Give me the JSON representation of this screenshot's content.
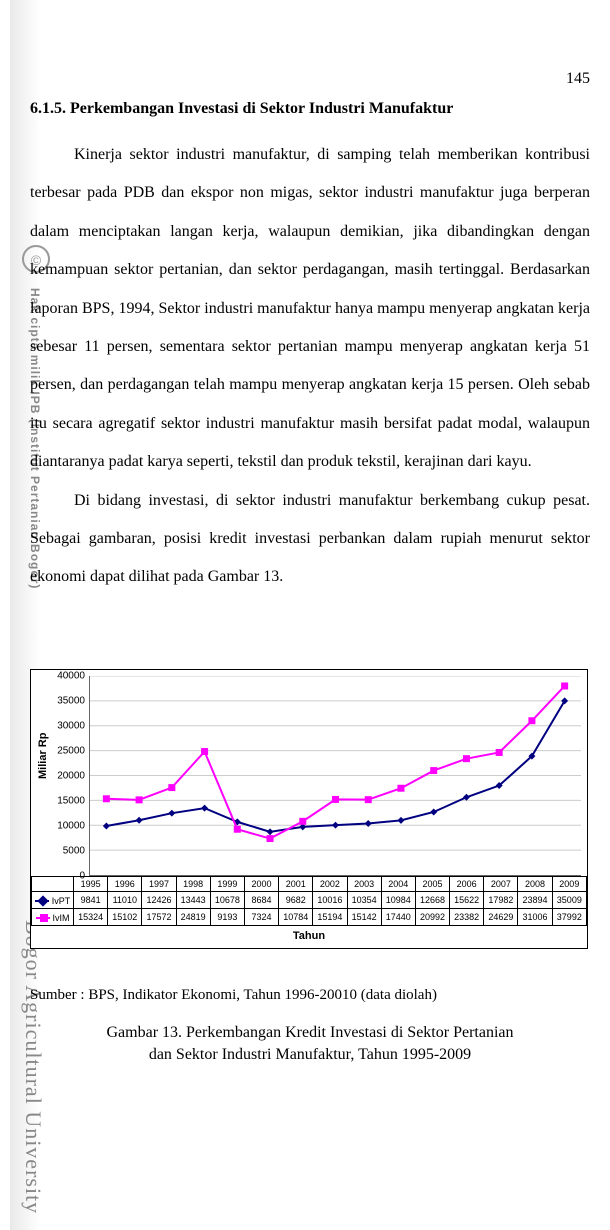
{
  "page_number": "145",
  "heading": "6.1.5. Perkembangan  Investasi di Sektor Industri Manufaktur",
  "para1": "Kinerja sektor industri manufaktur, di samping telah memberikan kontribusi terbesar pada PDB dan ekspor non migas,  sektor industri manufaktur juga berperan dalam menciptakan langan kerja, walaupun demikian, jika dibandingkan dengan kemampuan sektor pertanian, dan sektor perdagangan, masih tertinggal. Berdasarkan laporan BPS, 1994, Sektor industri  manufaktur hanya mampu menyerap angkatan kerja sebesar 11 persen, sementara sektor pertanian mampu menyerap angkatan kerja 51 persen, dan perdagangan telah mampu menyerap angkatan kerja 15 persen. Oleh sebab itu secara agregatif sektor industri manufaktur masih bersifat padat modal, walaupun diantaranya padat karya seperti, tekstil dan produk tekstil, kerajinan dari kayu.",
  "para2": "Di bidang investasi, di sektor industri manufaktur berkembang cukup pesat. Sebagai gambaran, posisi kredit investasi perbankan dalam rupiah menurut sektor ekonomi dapat dilihat pada Gambar 13.",
  "source": "Sumber : BPS, Indikator Ekonomi, Tahun 1996-20010 (data diolah)",
  "caption_l1": "Gambar 13.  Perkembangan Kredit Investasi di Sektor Pertanian",
  "caption_l2": "dan Sektor Industri Manufaktur, Tahun 1995-2009",
  "watermark": {
    "copyright": "©",
    "line1": "Hak cipta milik IPB (Institut Pertanian Bogor)",
    "line2": "Bogor Agricultural University"
  },
  "chart": {
    "type": "line",
    "ylabel": "Miliar Rp",
    "xlabel": "Tahun",
    "ylim": [
      0,
      40000
    ],
    "ytick_step": 5000,
    "yticks": [
      "0",
      "5000",
      "10000",
      "15000",
      "20000",
      "25000",
      "30000",
      "35000",
      "40000"
    ],
    "grid_color": "#cccccc",
    "background": "#ffffff",
    "categories": [
      "1995",
      "1996",
      "1997",
      "1998",
      "1999",
      "2000",
      "2001",
      "2002",
      "2003",
      "2004",
      "2005",
      "2006",
      "2007",
      "2008",
      "2009"
    ],
    "series": [
      {
        "key": "IvPT",
        "label": "IvPT",
        "color": "#000080",
        "marker": "diamond",
        "values": [
          9841,
          11010,
          12426,
          13443,
          10678,
          8684,
          9682,
          10016,
          10354,
          10984,
          12668,
          15622,
          17982,
          23894,
          35009
        ]
      },
      {
        "key": "IvIM",
        "label": "IvIM",
        "color": "#ff00ff",
        "marker": "square",
        "values": [
          15324,
          15102,
          17572,
          24819,
          9193,
          7324,
          10784,
          15194,
          15142,
          17440,
          20992,
          23382,
          24629,
          31006,
          37992
        ]
      }
    ],
    "label_fontsize": 11,
    "tick_fontsize": 10,
    "table_fontsize": 9,
    "line_width": 2,
    "marker_size": 7
  }
}
